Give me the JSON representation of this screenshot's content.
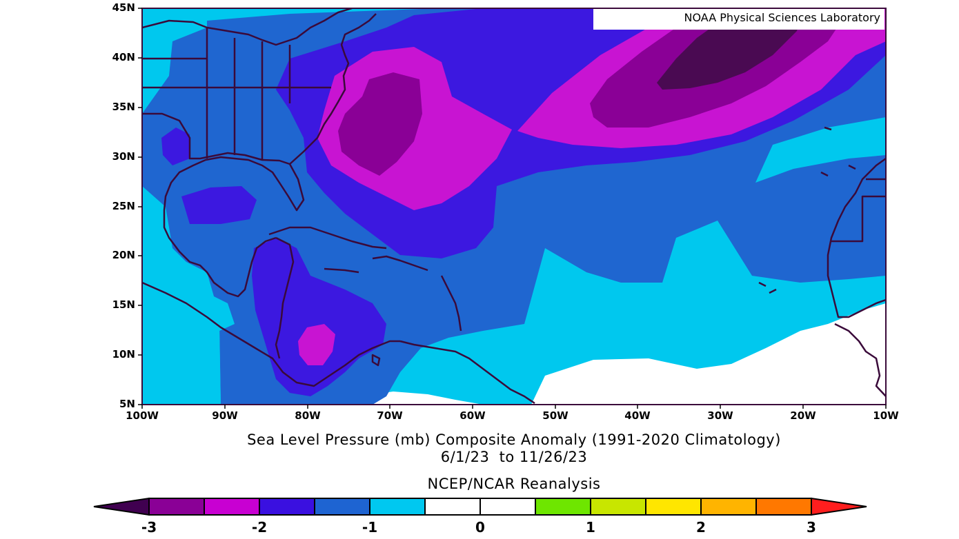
{
  "credit": "NOAA Physical Sciences Laboratory",
  "title_line1": "Sea Level Pressure (mb) Composite Anomaly (1991-2020 Climatology)",
  "title_line2": "6/1/23  to 11/26/23",
  "title_line3": "NCEP/NCAR Reanalysis",
  "lat_labels": [
    "45N",
    "40N",
    "35N",
    "30N",
    "25N",
    "20N",
    "15N",
    "10N",
    "5N"
  ],
  "lon_labels": [
    "100W",
    "90W",
    "80W",
    "70W",
    "60W",
    "50W",
    "40W",
    "30W",
    "20W",
    "10W"
  ],
  "colorbar": {
    "colors": [
      "#400050",
      "#8a0096",
      "#c800d2",
      "#3a10e0",
      "#1e64d2",
      "#00c8f0",
      "#ffffff",
      "#ffffff",
      "#6ee600",
      "#c8e600",
      "#ffe600",
      "#ffb400",
      "#ff7800",
      "#ff1e1e"
    ],
    "tick_labels": [
      "-3",
      "-2",
      "-1",
      "0",
      "1",
      "2",
      "3"
    ]
  },
  "palette": {
    "m3": "#4a0a52",
    "m25": "#8a0096",
    "m2": "#c814d2",
    "m15": "#3c18e0",
    "m1": "#1f66d0",
    "m05": "#00c8ee",
    "zero": "#ffffff",
    "coast": "#3a0a3a"
  }
}
